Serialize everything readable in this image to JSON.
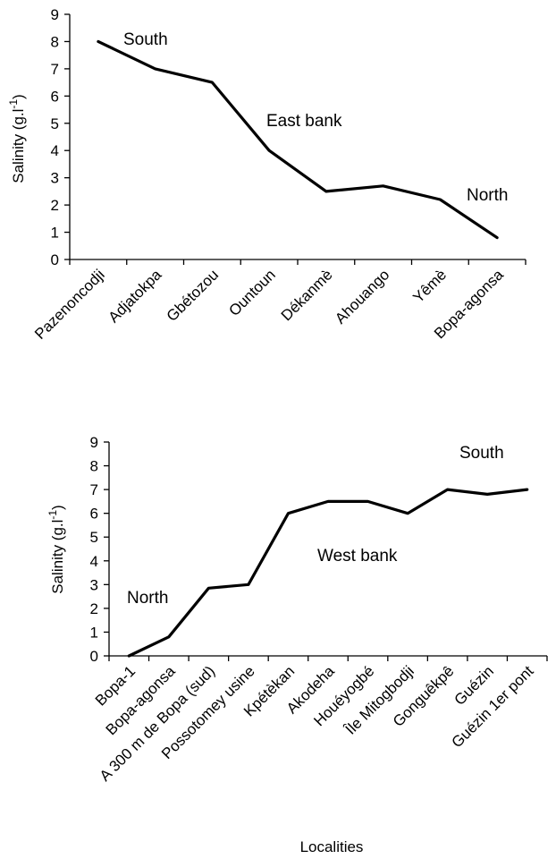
{
  "chart_data": [
    {
      "type": "line",
      "ylabel": "Salinity (g.l-1)",
      "xlabel": "",
      "ylim": [
        0,
        9
      ],
      "yticks": [
        0,
        1,
        2,
        3,
        4,
        5,
        6,
        7,
        8,
        9
      ],
      "categories": [
        "Pazenoncodji",
        "Adjatokpa",
        "Gbétozou",
        "Ountoun",
        "Dékanmè",
        "Ahouango",
        "Yêmè",
        "Bopa-agonsa"
      ],
      "series": [
        {
          "values": [
            8.0,
            7.0,
            6.5,
            4.0,
            2.5,
            2.7,
            2.2,
            0.8
          ]
        }
      ],
      "annotations": [
        "South",
        "East bank",
        "North"
      ],
      "grid": false,
      "legend": "none"
    },
    {
      "type": "line",
      "ylabel": "Salinity (g.l-1)",
      "xlabel": "Localities",
      "ylim": [
        0,
        9
      ],
      "yticks": [
        0,
        1,
        2,
        3,
        4,
        5,
        6,
        7,
        8,
        9
      ],
      "categories": [
        "Bopa-1",
        "Bopa-agonsa",
        "A 300 m de Bopa (sud)",
        "Possotomey usine",
        "Kpétèkan",
        "Akodeha",
        "Houéyogbé",
        "Île Mitogbodji",
        "Gonguêkpê",
        "Guézin",
        "Guézin 1er pont"
      ],
      "series": [
        {
          "values": [
            0.0,
            0.8,
            2.85,
            3.0,
            6.0,
            6.5,
            6.5,
            6.0,
            7.0,
            6.8,
            7.0
          ]
        }
      ],
      "annotations": [
        "South",
        "West bank",
        "North"
      ],
      "grid": false,
      "legend": "none"
    }
  ]
}
